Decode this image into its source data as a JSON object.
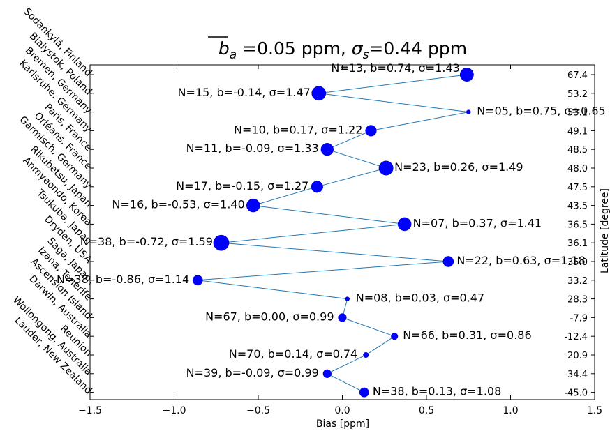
{
  "chart_data": {
    "type": "scatter",
    "title_prefix": "b",
    "title_sub": "a",
    "title_mid": " =0.05 ppm, ",
    "title_sigma": "σ",
    "title_sigma_sub": "s",
    "title_tail": "=0.44 ppm",
    "xlabel": "Bias [ppm]",
    "ylabel_right": "Latitude [degree]",
    "xlim": [
      -1.5,
      1.5
    ],
    "xticks": [
      -1.5,
      -1.0,
      -0.5,
      0.0,
      0.5,
      1.0,
      1.5
    ],
    "xtick_labels": [
      "−1.5",
      "−1.0",
      "−0.5",
      "0.0",
      "0.5",
      "1.0",
      "1.5"
    ],
    "grid": false,
    "marker_color": "#0000ff",
    "line_color": "#1f77b4",
    "stations": [
      {
        "name": "Sodankylä, Finland",
        "lat": "67.4",
        "N": 13,
        "b": 0.74,
        "sigma": 1.43,
        "label": "N=13, b=0.74, σ=1.43"
      },
      {
        "name": "Bialystok, Poland",
        "lat": "53.2",
        "N": 15,
        "b": -0.14,
        "sigma": 1.47,
        "label": "N=15, b=-0.14, σ=1.47"
      },
      {
        "name": "Bremen, Germany",
        "lat": "53.1",
        "N": 5,
        "b": 0.75,
        "sigma": 0.65,
        "label": "N=05, b=0.75, σ=0.65"
      },
      {
        "name": "Karlsruhe, Germany",
        "lat": "49.1",
        "N": 10,
        "b": 0.17,
        "sigma": 1.22,
        "label": "N=10, b=0.17, σ=1.22"
      },
      {
        "name": "Paris, France",
        "lat": "48.5",
        "N": 11,
        "b": -0.09,
        "sigma": 1.33,
        "label": "N=11, b=-0.09, σ=1.33"
      },
      {
        "name": "Orléans, France",
        "lat": "48.0",
        "N": 23,
        "b": 0.26,
        "sigma": 1.49,
        "label": "N=23, b=0.26, σ=1.49"
      },
      {
        "name": "Garmisch, Germany",
        "lat": "47.5",
        "N": 17,
        "b": -0.15,
        "sigma": 1.27,
        "label": "N=17, b=-0.15, σ=1.27"
      },
      {
        "name": "Rikubetsu, Japan",
        "lat": "43.5",
        "N": 16,
        "b": -0.53,
        "sigma": 1.4,
        "label": "N=16, b=-0.53, σ=1.40"
      },
      {
        "name": "Anmyeondo, Korea",
        "lat": "36.5",
        "N": 7,
        "b": 0.37,
        "sigma": 1.41,
        "label": "N=07, b=0.37, σ=1.41"
      },
      {
        "name": "Tsukuba, Japan",
        "lat": "36.1",
        "N": 38,
        "b": -0.72,
        "sigma": 1.59,
        "label": "N=38, b=-0.72, σ=1.59"
      },
      {
        "name": "Dryden, USA",
        "lat": "35.0",
        "N": 22,
        "b": 0.63,
        "sigma": 1.18,
        "label": "N=22, b=0.63, σ=1.18"
      },
      {
        "name": "Saga, Japan",
        "lat": "33.2",
        "N": 38,
        "b": -0.86,
        "sigma": 1.14,
        "label": "N=38, b=-0.86, σ=1.14"
      },
      {
        "name": "Izana, Tenerife",
        "lat": "28.3",
        "N": 8,
        "b": 0.03,
        "sigma": 0.47,
        "label": "N=08, b=0.03, σ=0.47"
      },
      {
        "name": "Ascension Island",
        "lat": "-7.9",
        "N": 67,
        "b": 0.0,
        "sigma": 0.99,
        "label": "N=67, b=0.00, σ=0.99"
      },
      {
        "name": "Darwin, Australia",
        "lat": "-12.4",
        "N": 66,
        "b": 0.31,
        "sigma": 0.86,
        "label": "N=66, b=0.31, σ=0.86"
      },
      {
        "name": "Reunion",
        "lat": "-20.9",
        "N": 70,
        "b": 0.14,
        "sigma": 0.74,
        "label": "N=70, b=0.14, σ=0.74"
      },
      {
        "name": "Wollongong, Australia",
        "lat": "-34.4",
        "N": 39,
        "b": -0.09,
        "sigma": 0.99,
        "label": "N=39, b=-0.09, σ=0.99"
      },
      {
        "name": "Lauder, New Zealand",
        "lat": "-45.0",
        "N": 38,
        "b": 0.13,
        "sigma": 1.08,
        "label": "N=38, b=0.13, σ=1.08"
      }
    ]
  }
}
